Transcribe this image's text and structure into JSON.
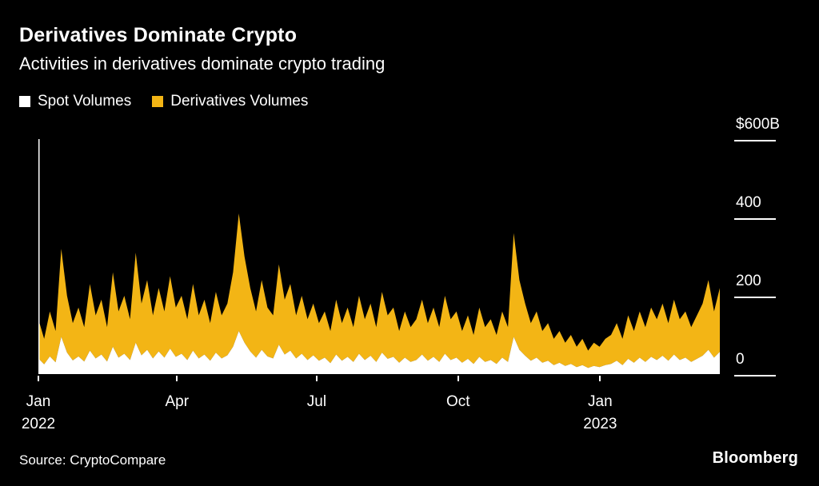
{
  "header": {
    "title": "Derivatives Dominate Crypto",
    "subtitle": "Activities in derivatives dominate crypto trading"
  },
  "legend": {
    "items": [
      {
        "label": "Spot Volumes",
        "color": "#ffffff"
      },
      {
        "label": "Derivatives Volumes",
        "color": "#f3b515"
      }
    ]
  },
  "footer": {
    "source": "Source: CryptoCompare",
    "brand": "Bloomberg"
  },
  "chart_data": {
    "type": "area",
    "stacked": true,
    "title": "Derivatives Dominate Crypto",
    "subtitle": "Activities in derivatives dominate crypto trading",
    "unit": "billions of US dollars, daily crypto trading volume",
    "ylim": [
      0,
      600
    ],
    "grid": false,
    "legend_position": "top-left",
    "background": "#000000",
    "y_ticks": [
      {
        "label": "$600B",
        "value": 600
      },
      {
        "label": "400",
        "value": 400
      },
      {
        "label": "200",
        "value": 200
      },
      {
        "label": "0",
        "value": 0
      }
    ],
    "x_ticks": [
      {
        "label": "Jan",
        "sublabel": "2022",
        "index": 0
      },
      {
        "label": "Apr",
        "index": 24.2
      },
      {
        "label": "Jul",
        "index": 48.6
      },
      {
        "label": "Oct",
        "index": 73.3
      },
      {
        "label": "Jan",
        "sublabel": "2023",
        "index": 98.1
      }
    ],
    "series": [
      {
        "name": "Spot Volumes",
        "color": "#ffffff",
        "values": [
          40,
          25,
          45,
          30,
          95,
          55,
          35,
          45,
          32,
          60,
          40,
          50,
          32,
          70,
          42,
          52,
          36,
          80,
          48,
          62,
          40,
          58,
          42,
          65,
          44,
          52,
          36,
          60,
          40,
          50,
          34,
          55,
          40,
          48,
          70,
          110,
          80,
          58,
          42,
          62,
          45,
          40,
          75,
          50,
          60,
          40,
          52,
          36,
          48,
          34,
          42,
          28,
          50,
          34,
          44,
          31,
          52,
          36,
          47,
          31,
          55,
          39,
          44,
          29,
          42,
          31,
          36,
          50,
          34,
          44,
          31,
          52,
          36,
          42,
          29,
          39,
          26,
          44,
          31,
          36,
          26,
          42,
          31,
          95,
          62,
          47,
          34,
          42,
          29,
          34,
          23,
          29,
          21,
          26,
          18,
          23,
          16,
          21,
          18,
          23,
          26,
          34,
          23,
          39,
          29,
          42,
          31,
          44,
          36,
          47,
          34,
          50,
          36,
          42,
          31,
          39,
          47,
          62,
          42,
          57
        ]
      },
      {
        "name": "Derivatives Volumes",
        "color": "#f3b515",
        "values": [
          100,
          65,
          115,
          80,
          225,
          145,
          95,
          125,
          88,
          170,
          110,
          140,
          88,
          190,
          118,
          148,
          104,
          230,
          132,
          178,
          110,
          162,
          118,
          185,
          126,
          148,
          104,
          170,
          110,
          140,
          96,
          155,
          110,
          132,
          190,
          300,
          220,
          162,
          118,
          178,
          125,
          110,
          205,
          140,
          170,
          110,
          148,
          104,
          132,
          96,
          118,
          82,
          140,
          96,
          126,
          89,
          148,
          104,
          133,
          89,
          155,
          111,
          126,
          81,
          118,
          89,
          104,
          140,
          96,
          126,
          89,
          148,
          104,
          118,
          81,
          111,
          74,
          126,
          89,
          104,
          74,
          118,
          89,
          265,
          178,
          133,
          96,
          118,
          81,
          96,
          67,
          81,
          59,
          74,
          52,
          67,
          44,
          59,
          52,
          67,
          74,
          96,
          67,
          111,
          81,
          118,
          89,
          126,
          104,
          133,
          96,
          140,
          104,
          118,
          89,
          111,
          133,
          178,
          118,
          163
        ]
      }
    ],
    "annotations": []
  }
}
